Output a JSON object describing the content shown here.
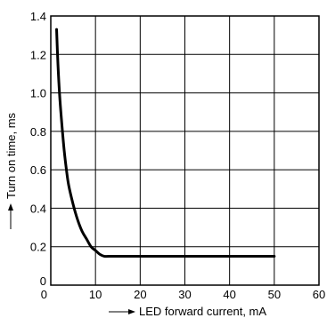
{
  "chart_data": {
    "type": "line",
    "title": "",
    "xlabel": "LED forward current, mA",
    "ylabel": "Turn on time, ms",
    "xlim": [
      0,
      60
    ],
    "ylim": [
      0,
      1.4
    ],
    "x_ticks": [
      0,
      10,
      20,
      30,
      40,
      50,
      60
    ],
    "x_tick_labels": [
      "0",
      "10",
      "20",
      "30",
      "40",
      "50",
      "60"
    ],
    "y_ticks": [
      0,
      0.2,
      0.4,
      0.6,
      0.8,
      1.0,
      1.2,
      1.4
    ],
    "y_tick_labels": [
      "0",
      "0.2",
      "0.4",
      "0.6",
      "0.8",
      "1.0",
      "1.2",
      "1.4"
    ],
    "grid": true,
    "legend": "none",
    "series": [
      {
        "x": [
          1.3,
          1.6,
          2,
          2.5,
          3,
          3.5,
          4,
          5,
          6,
          7,
          8,
          9,
          10,
          11,
          12,
          13,
          15,
          20,
          30,
          40,
          50
        ],
        "y": [
          1.33,
          1.15,
          0.98,
          0.83,
          0.7,
          0.6,
          0.52,
          0.42,
          0.34,
          0.28,
          0.24,
          0.2,
          0.18,
          0.16,
          0.15,
          0.15,
          0.15,
          0.15,
          0.15,
          0.15,
          0.15
        ]
      }
    ]
  }
}
